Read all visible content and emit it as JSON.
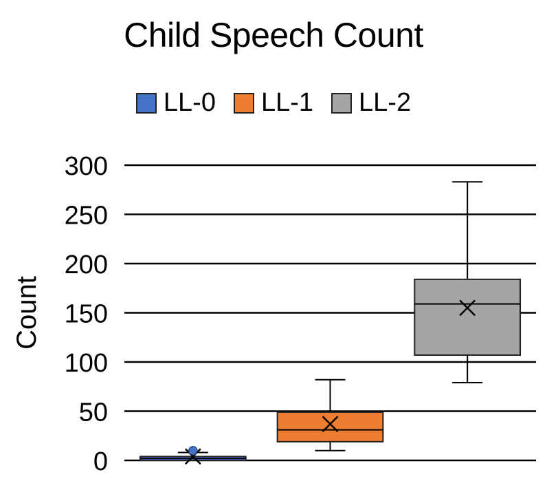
{
  "chart_data": {
    "type": "box",
    "title": "Child Speech Count",
    "ylabel": "Count",
    "xlabel": "",
    "ylim": [
      0,
      300
    ],
    "yticks": [
      0,
      50,
      100,
      150,
      200,
      250,
      300
    ],
    "grid": true,
    "legend_position": "top",
    "series": [
      {
        "name": "LL-0",
        "color": "#4472C4",
        "min": 0,
        "q1": 0,
        "median": 2,
        "q3": 4,
        "max": 8,
        "mean": 4,
        "outliers": [
          10
        ]
      },
      {
        "name": "LL-1",
        "color": "#ED7D31",
        "min": 10,
        "q1": 19,
        "median": 31,
        "q3": 49,
        "max": 82,
        "mean": 37,
        "outliers": []
      },
      {
        "name": "LL-2",
        "color": "#A5A5A5",
        "min": 79,
        "q1": 107,
        "median": 159,
        "q3": 184,
        "max": 283,
        "mean": 155,
        "outliers": []
      }
    ]
  }
}
